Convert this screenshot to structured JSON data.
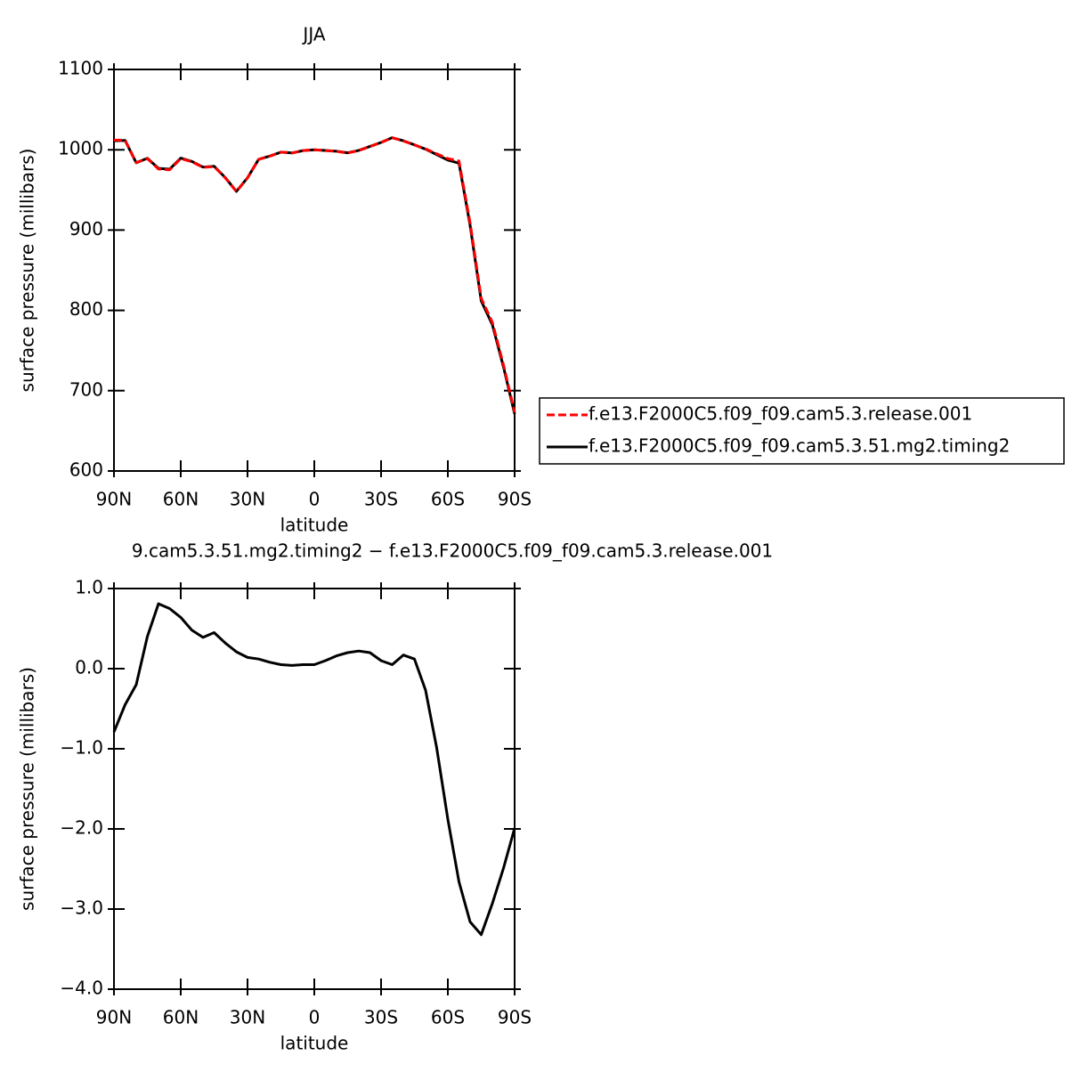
{
  "chart_data": [
    {
      "type": "line",
      "title": "JJA",
      "xlabel": "latitude",
      "ylabel": "surface pressure (millibars)",
      "x": [
        90,
        85,
        80,
        75,
        70,
        65,
        60,
        55,
        50,
        45,
        40,
        35,
        30,
        25,
        20,
        15,
        10,
        5,
        0,
        -5,
        -10,
        -15,
        -20,
        -25,
        -30,
        -35,
        -40,
        -45,
        -50,
        -55,
        -60,
        -65,
        -70,
        -75,
        -80,
        -85,
        -90
      ],
      "series": [
        {
          "name": "f.e13.F2000C5.f09_f09.cam5.3.release.001",
          "color": "#ff0000",
          "dashed": true,
          "values": [
            1012,
            1012,
            984,
            989,
            976,
            975,
            989,
            985,
            978,
            979,
            965,
            948,
            965,
            988,
            992,
            997,
            996,
            999,
            1000,
            999,
            998,
            996,
            999,
            1004,
            1009,
            1015,
            1011,
            1006,
            1001,
            995,
            989,
            986,
            909,
            815,
            785,
            732,
            673
          ]
        },
        {
          "name": "f.e13.F2000C5.f09_f09.cam5.3.51.mg2.timing2",
          "color": "#000000",
          "dashed": false,
          "values": [
            1011.2,
            1011.6,
            983.8,
            989.4,
            976.8,
            975.8,
            989.6,
            985.5,
            978.4,
            979.5,
            965.3,
            948.2,
            965.1,
            988.1,
            992.1,
            997,
            996,
            999,
            1000,
            999.1,
            998.2,
            996.2,
            999.2,
            1004.2,
            1009.1,
            1015,
            1011.2,
            1006.1,
            1000.7,
            994,
            987.1,
            983.3,
            905.8,
            811.7,
            782.1,
            729.5,
            671
          ]
        }
      ],
      "xlim": [
        90,
        -90
      ],
      "xticks": [
        {
          "value": 90,
          "label": "90N"
        },
        {
          "value": 60,
          "label": "60N"
        },
        {
          "value": 30,
          "label": "30N"
        },
        0,
        {
          "value": -30,
          "label": "30S"
        },
        {
          "value": -60,
          "label": "60S"
        },
        {
          "value": -90,
          "label": "90S"
        }
      ],
      "ylim": [
        600,
        1100
      ],
      "yticks": [
        600,
        700,
        800,
        900,
        1000,
        1100
      ],
      "legend": "outside-right"
    },
    {
      "type": "line",
      "title": "9.cam5.3.51.mg2.timing2 − f.e13.F2000C5.f09_f09.cam5.3.release.001",
      "xlabel": "latitude",
      "ylabel": "surface pressure (millibars)",
      "x": [
        90,
        85,
        80,
        75,
        70,
        65,
        60,
        55,
        50,
        45,
        40,
        35,
        30,
        25,
        20,
        15,
        10,
        5,
        0,
        -5,
        -10,
        -15,
        -20,
        -25,
        -30,
        -35,
        -40,
        -45,
        -50,
        -55,
        -60,
        -65,
        -70,
        -75,
        -80,
        -85,
        -90
      ],
      "series": [
        {
          "color": "#000000",
          "dashed": false,
          "values": [
            -0.79,
            -0.45,
            -0.2,
            0.4,
            0.81,
            0.75,
            0.64,
            0.48,
            0.39,
            0.45,
            0.32,
            0.21,
            0.14,
            0.12,
            0.08,
            0.05,
            0.04,
            0.05,
            0.05,
            0.1,
            0.16,
            0.2,
            0.22,
            0.2,
            0.1,
            0.05,
            0.17,
            0.12,
            -0.27,
            -0.99,
            -1.88,
            -2.66,
            -3.16,
            -3.32,
            -2.93,
            -2.49,
            -1.99
          ]
        }
      ],
      "xlim": [
        90,
        -90
      ],
      "xticks": [
        {
          "value": 90,
          "label": "90N"
        },
        {
          "value": 60,
          "label": "60N"
        },
        {
          "value": 30,
          "label": "30N"
        },
        0,
        {
          "value": -30,
          "label": "30S"
        },
        {
          "value": -60,
          "label": "60S"
        },
        {
          "value": -90,
          "label": "90S"
        }
      ],
      "ylim": [
        -4,
        1
      ],
      "yticks": [
        {
          "value": -4,
          "label": "−4.0"
        },
        {
          "value": -3,
          "label": "−3.0"
        },
        {
          "value": -2,
          "label": "−2.0"
        },
        {
          "value": -1,
          "label": "−1.0"
        },
        {
          "value": 0,
          "label": "0.0"
        },
        {
          "value": 1,
          "label": "1.0"
        }
      ]
    }
  ]
}
